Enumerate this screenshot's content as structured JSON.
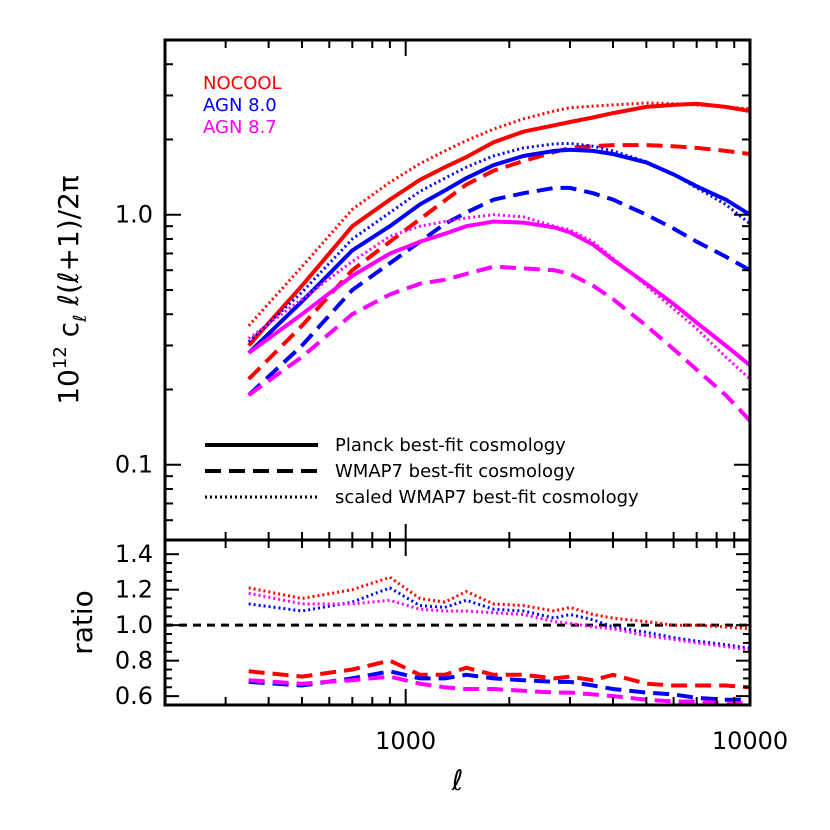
{
  "chart_data": [
    {
      "panel": "top",
      "type": "line",
      "xscale": "log",
      "yscale": "log",
      "xlim": [
        200,
        10000
      ],
      "ylim": [
        0.05,
        5
      ],
      "ylabel_parts": [
        "10",
        "12",
        " c",
        "ℓ",
        " ℓ(ℓ+1)/2π"
      ],
      "yticks": [
        {
          "value": 0.1,
          "label": "0.1"
        },
        {
          "value": 1.0,
          "label": "1.0"
        }
      ],
      "model_legend": [
        {
          "name": "NOCOOL",
          "color": "#ff0000"
        },
        {
          "name": "AGN 8.0",
          "color": "#0000ff"
        },
        {
          "name": "AGN 8.7",
          "color": "#ff00ff"
        }
      ],
      "style_legend": [
        {
          "style": "solid",
          "label": "Planck best-fit cosmology"
        },
        {
          "style": "dashed",
          "label": "WMAP7 best-fit cosmology"
        },
        {
          "style": "dotted",
          "label": "scaled WMAP7 best-fit cosmology"
        }
      ],
      "x": [
        350,
        500,
        700,
        900,
        1100,
        1300,
        1500,
        1800,
        2200,
        2700,
        3000,
        3500,
        4000,
        5000,
        6000,
        7000,
        8500,
        10000
      ],
      "series": [
        {
          "name": "NOCOOL",
          "color": "#ff0000",
          "style": "solid",
          "values": [
            0.3,
            0.52,
            0.9,
            1.15,
            1.38,
            1.55,
            1.7,
            1.95,
            2.15,
            2.28,
            2.35,
            2.45,
            2.55,
            2.7,
            2.75,
            2.78,
            2.7,
            2.6
          ]
        },
        {
          "name": "NOCOOL",
          "color": "#ff0000",
          "style": "dashed",
          "values": [
            0.22,
            0.36,
            0.6,
            0.78,
            0.96,
            1.14,
            1.32,
            1.5,
            1.64,
            1.78,
            1.85,
            1.88,
            1.9,
            1.9,
            1.88,
            1.85,
            1.8,
            1.75
          ]
        },
        {
          "name": "NOCOOL",
          "color": "#ff0000",
          "style": "dotted",
          "values": [
            0.36,
            0.62,
            1.05,
            1.35,
            1.6,
            1.8,
            1.98,
            2.2,
            2.42,
            2.6,
            2.68,
            2.72,
            2.75,
            2.8,
            2.78,
            2.75,
            2.7,
            2.65
          ]
        },
        {
          "name": "AGN 8.0",
          "color": "#0000ff",
          "style": "solid",
          "values": [
            0.28,
            0.45,
            0.72,
            0.9,
            1.1,
            1.25,
            1.4,
            1.58,
            1.72,
            1.8,
            1.82,
            1.8,
            1.75,
            1.62,
            1.45,
            1.3,
            1.15,
            1.0
          ]
        },
        {
          "name": "AGN 8.0",
          "color": "#0000ff",
          "style": "dashed",
          "values": [
            0.19,
            0.3,
            0.5,
            0.64,
            0.78,
            0.92,
            1.02,
            1.15,
            1.22,
            1.28,
            1.28,
            1.22,
            1.15,
            1.0,
            0.88,
            0.78,
            0.68,
            0.6
          ]
        },
        {
          "name": "AGN 8.0",
          "color": "#0000ff",
          "style": "dotted",
          "values": [
            0.31,
            0.49,
            0.8,
            1.02,
            1.24,
            1.4,
            1.55,
            1.72,
            1.85,
            1.92,
            1.93,
            1.88,
            1.8,
            1.63,
            1.45,
            1.28,
            1.1,
            0.92
          ]
        },
        {
          "name": "AGN 8.7",
          "color": "#ff00ff",
          "style": "solid",
          "values": [
            0.28,
            0.4,
            0.57,
            0.7,
            0.78,
            0.84,
            0.9,
            0.94,
            0.93,
            0.89,
            0.85,
            0.76,
            0.66,
            0.53,
            0.44,
            0.37,
            0.3,
            0.25
          ]
        },
        {
          "name": "AGN 8.7",
          "color": "#ff00ff",
          "style": "dashed",
          "values": [
            0.19,
            0.27,
            0.4,
            0.48,
            0.53,
            0.55,
            0.58,
            0.62,
            0.61,
            0.6,
            0.58,
            0.52,
            0.46,
            0.36,
            0.29,
            0.24,
            0.19,
            0.15
          ]
        },
        {
          "name": "AGN 8.7",
          "color": "#ff00ff",
          "style": "dotted",
          "values": [
            0.32,
            0.46,
            0.65,
            0.82,
            0.9,
            0.94,
            0.97,
            1.0,
            0.98,
            0.9,
            0.87,
            0.78,
            0.67,
            0.52,
            0.42,
            0.35,
            0.27,
            0.22
          ]
        }
      ]
    },
    {
      "panel": "bottom",
      "type": "line",
      "xscale": "log",
      "yscale": "linear",
      "xlim": [
        200,
        10000
      ],
      "ylim": [
        0.55,
        1.48
      ],
      "ylabel": "ratio",
      "xlabel": "ℓ",
      "reference_line": 1.0,
      "yticks": [
        {
          "value": 0.6,
          "label": "0.6"
        },
        {
          "value": 0.8,
          "label": "0.8"
        },
        {
          "value": 1.0,
          "label": "1.0"
        },
        {
          "value": 1.2,
          "label": "1.2"
        },
        {
          "value": 1.4,
          "label": "1.4"
        }
      ],
      "xticks": [
        {
          "value": 1000,
          "label": "1000"
        },
        {
          "value": 10000,
          "label": "10000"
        }
      ],
      "x": [
        350,
        500,
        700,
        900,
        1100,
        1300,
        1500,
        1800,
        2200,
        2700,
        3000,
        3500,
        4000,
        5000,
        6000,
        7000,
        8500,
        10000
      ],
      "series": [
        {
          "name": "NOCOOL",
          "color": "#ff0000",
          "style": "dashed",
          "values": [
            0.74,
            0.71,
            0.75,
            0.8,
            0.72,
            0.72,
            0.76,
            0.72,
            0.72,
            0.7,
            0.71,
            0.69,
            0.72,
            0.67,
            0.66,
            0.66,
            0.66,
            0.65
          ]
        },
        {
          "name": "NOCOOL",
          "color": "#ff0000",
          "style": "dotted",
          "values": [
            1.21,
            1.15,
            1.2,
            1.27,
            1.15,
            1.13,
            1.19,
            1.12,
            1.11,
            1.08,
            1.1,
            1.06,
            1.04,
            1.02,
            1.0,
            1.0,
            0.99,
            0.98
          ]
        },
        {
          "name": "AGN 8.0",
          "color": "#0000ff",
          "style": "dashed",
          "values": [
            0.68,
            0.66,
            0.7,
            0.74,
            0.7,
            0.7,
            0.72,
            0.7,
            0.69,
            0.68,
            0.68,
            0.66,
            0.64,
            0.62,
            0.61,
            0.59,
            0.58,
            0.58
          ]
        },
        {
          "name": "AGN 8.0",
          "color": "#0000ff",
          "style": "dotted",
          "values": [
            1.12,
            1.08,
            1.13,
            1.21,
            1.11,
            1.1,
            1.14,
            1.09,
            1.08,
            1.04,
            1.06,
            1.03,
            0.99,
            0.96,
            0.93,
            0.91,
            0.89,
            0.87
          ]
        },
        {
          "name": "AGN 8.7",
          "color": "#ff00ff",
          "style": "dashed",
          "values": [
            0.69,
            0.67,
            0.69,
            0.71,
            0.67,
            0.65,
            0.64,
            0.64,
            0.63,
            0.62,
            0.62,
            0.61,
            0.6,
            0.58,
            0.57,
            0.57,
            0.56,
            0.56
          ]
        },
        {
          "name": "AGN 8.7",
          "color": "#ff00ff",
          "style": "dotted",
          "values": [
            1.18,
            1.12,
            1.12,
            1.14,
            1.09,
            1.08,
            1.08,
            1.07,
            1.06,
            1.02,
            1.01,
            0.99,
            0.98,
            0.94,
            0.92,
            0.9,
            0.88,
            0.86
          ]
        }
      ]
    }
  ]
}
